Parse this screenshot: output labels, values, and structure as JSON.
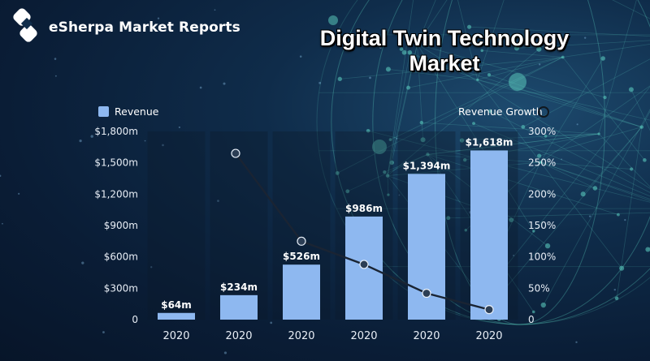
{
  "brand": {
    "name": "eSherpa Market Reports"
  },
  "colors": {
    "bar": "#8eb8f0",
    "line": "#1a2433",
    "point": "#2c3e55",
    "accent_glow": "#5fd3c4"
  },
  "chart_data": {
    "type": "bar",
    "title_lines": [
      "Digital Twin Technology",
      "Market"
    ],
    "categories": [
      "2020",
      "2020",
      "2020",
      "2020",
      "2020",
      "2020"
    ],
    "series": [
      {
        "name": "Revenue",
        "type": "bar",
        "axis": "left",
        "values": [
          64,
          234,
          526,
          986,
          1394,
          1618
        ],
        "labels": [
          "$64m",
          "$234m",
          "$526m",
          "$986m",
          "$1,394m",
          "$1,618m"
        ]
      },
      {
        "name": "Revenue Growth",
        "type": "line",
        "axis": "right",
        "values": [
          null,
          265,
          125,
          88,
          42,
          16
        ]
      }
    ],
    "y_left": {
      "range": [
        0,
        1800
      ],
      "ticks": [
        0,
        300,
        600,
        900,
        1200,
        1500,
        1800
      ],
      "tick_labels": [
        "0",
        "$300m",
        "$600m",
        "$900m",
        "$1,200m",
        "$1,500m",
        "$1,800m"
      ]
    },
    "y_right": {
      "range": [
        0,
        300
      ],
      "ticks": [
        0,
        50,
        100,
        150,
        200,
        250,
        300
      ],
      "tick_labels": [
        "0",
        "50%",
        "100%",
        "150%",
        "200%",
        "250%",
        "300%"
      ]
    },
    "legend": [
      {
        "label": "Revenue",
        "placement": "top-left"
      },
      {
        "label": "Revenue Growth",
        "placement": "top-right"
      }
    ],
    "grid": false
  }
}
